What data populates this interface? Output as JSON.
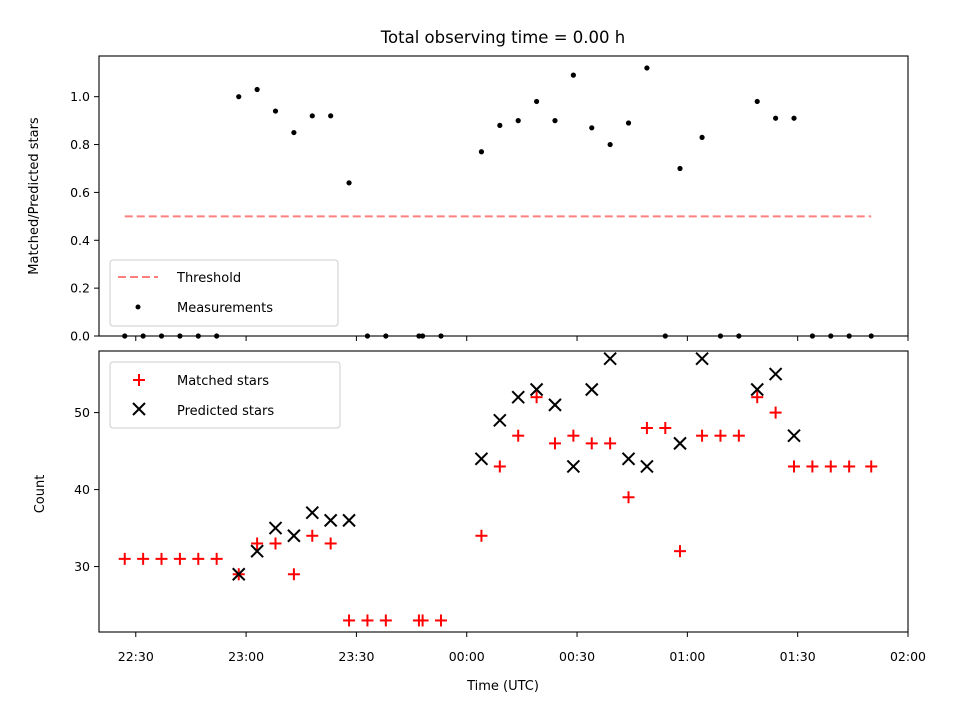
{
  "chart_data": [
    {
      "type": "scatter",
      "title": "Total observing time = 0.00 h",
      "ylabel": "Matched/Predicted stars",
      "ylim": [
        0,
        1.17
      ],
      "yticks": [
        "0.0",
        "0.2",
        "0.4",
        "0.6",
        "0.8",
        "1.0"
      ],
      "legend_position": "lower-left",
      "threshold": {
        "name": "Threshold",
        "value": 0.5,
        "x_start": "22:27",
        "x_end": "01:50",
        "color": "#ff7f7f"
      },
      "series": [
        {
          "name": "Measurements",
          "color": "#000000",
          "x": [
            "22:27",
            "22:32",
            "22:37",
            "22:42",
            "22:47",
            "22:52",
            "22:58",
            "23:03",
            "23:08",
            "23:13",
            "23:18",
            "23:23",
            "23:28",
            "23:33",
            "23:38",
            "23:47",
            "23:48",
            "23:53",
            "00:04",
            "00:09",
            "00:14",
            "00:19",
            "00:24",
            "00:29",
            "00:34",
            "00:39",
            "00:44",
            "00:49",
            "00:54",
            "00:58",
            "01:04",
            "01:09",
            "01:14",
            "01:19",
            "01:24",
            "01:29",
            "01:34",
            "01:39",
            "01:44",
            "01:50"
          ],
          "y": [
            0,
            0,
            0,
            0,
            0,
            0,
            1.0,
            1.03,
            0.94,
            0.85,
            0.92,
            0.92,
            0.64,
            0,
            0,
            0,
            0,
            0,
            0.77,
            0.88,
            0.9,
            0.98,
            0.9,
            1.09,
            0.87,
            0.8,
            0.89,
            1.12,
            0,
            0.7,
            0.83,
            0,
            0,
            0.98,
            0.91,
            0.91,
            0,
            0,
            0,
            0
          ]
        }
      ]
    },
    {
      "type": "scatter",
      "xlabel": "Time (UTC)",
      "ylabel": "Count",
      "ylim": [
        21.5,
        58
      ],
      "yticks": [
        "30",
        "40",
        "50"
      ],
      "xticks": [
        "22:30",
        "23:00",
        "23:30",
        "00:00",
        "00:30",
        "01:00",
        "01:30",
        "02:00"
      ],
      "legend_position": "upper-left",
      "series": [
        {
          "name": "Matched stars",
          "marker": "plus",
          "color": "#ff0000",
          "x": [
            "22:27",
            "22:32",
            "22:37",
            "22:42",
            "22:47",
            "22:52",
            "22:58",
            "23:03",
            "23:08",
            "23:13",
            "23:18",
            "23:23",
            "23:28",
            "23:33",
            "23:38",
            "23:47",
            "23:48",
            "23:53",
            "00:04",
            "00:09",
            "00:14",
            "00:19",
            "00:24",
            "00:29",
            "00:34",
            "00:39",
            "00:44",
            "00:49",
            "00:54",
            "00:58",
            "01:04",
            "01:09",
            "01:14",
            "01:19",
            "01:24",
            "01:29",
            "01:34",
            "01:39",
            "01:44",
            "01:50"
          ],
          "y": [
            31,
            31,
            31,
            31,
            31,
            31,
            29,
            33,
            33,
            29,
            34,
            33,
            23,
            23,
            23,
            23,
            23,
            23,
            34,
            43,
            47,
            52,
            46,
            47,
            46,
            46,
            39,
            48,
            48,
            32,
            47,
            47,
            47,
            52,
            50,
            43,
            43,
            43,
            43,
            43
          ]
        },
        {
          "name": "Predicted stars",
          "marker": "x",
          "color": "#000000",
          "x": [
            "22:58",
            "23:03",
            "23:08",
            "23:13",
            "23:18",
            "23:23",
            "23:28",
            "00:04",
            "00:09",
            "00:14",
            "00:19",
            "00:24",
            "00:29",
            "00:34",
            "00:39",
            "00:44",
            "00:49",
            "00:58",
            "01:04",
            "01:19",
            "01:24",
            "01:29"
          ],
          "y": [
            29,
            32,
            35,
            34,
            37,
            36,
            36,
            44,
            49,
            52,
            53,
            51,
            43,
            53,
            57,
            44,
            43,
            46,
            57,
            53,
            55,
            47
          ]
        }
      ]
    }
  ]
}
